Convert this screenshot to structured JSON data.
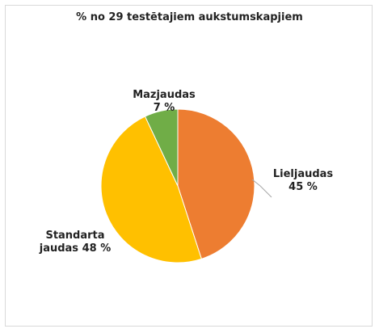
{
  "chart_data": {
    "type": "pie",
    "title": "% no 29 testētajiem aukstumskapjiem",
    "categories": [
      "Lieljaudas",
      "Standarta jaudas",
      "Mazjaudas"
    ],
    "values": [
      45,
      48,
      7
    ],
    "value_labels": [
      "45 %",
      "48 %",
      "7 %"
    ],
    "colors": [
      "#ED7D31",
      "#FFC000",
      "#70AD47"
    ]
  }
}
